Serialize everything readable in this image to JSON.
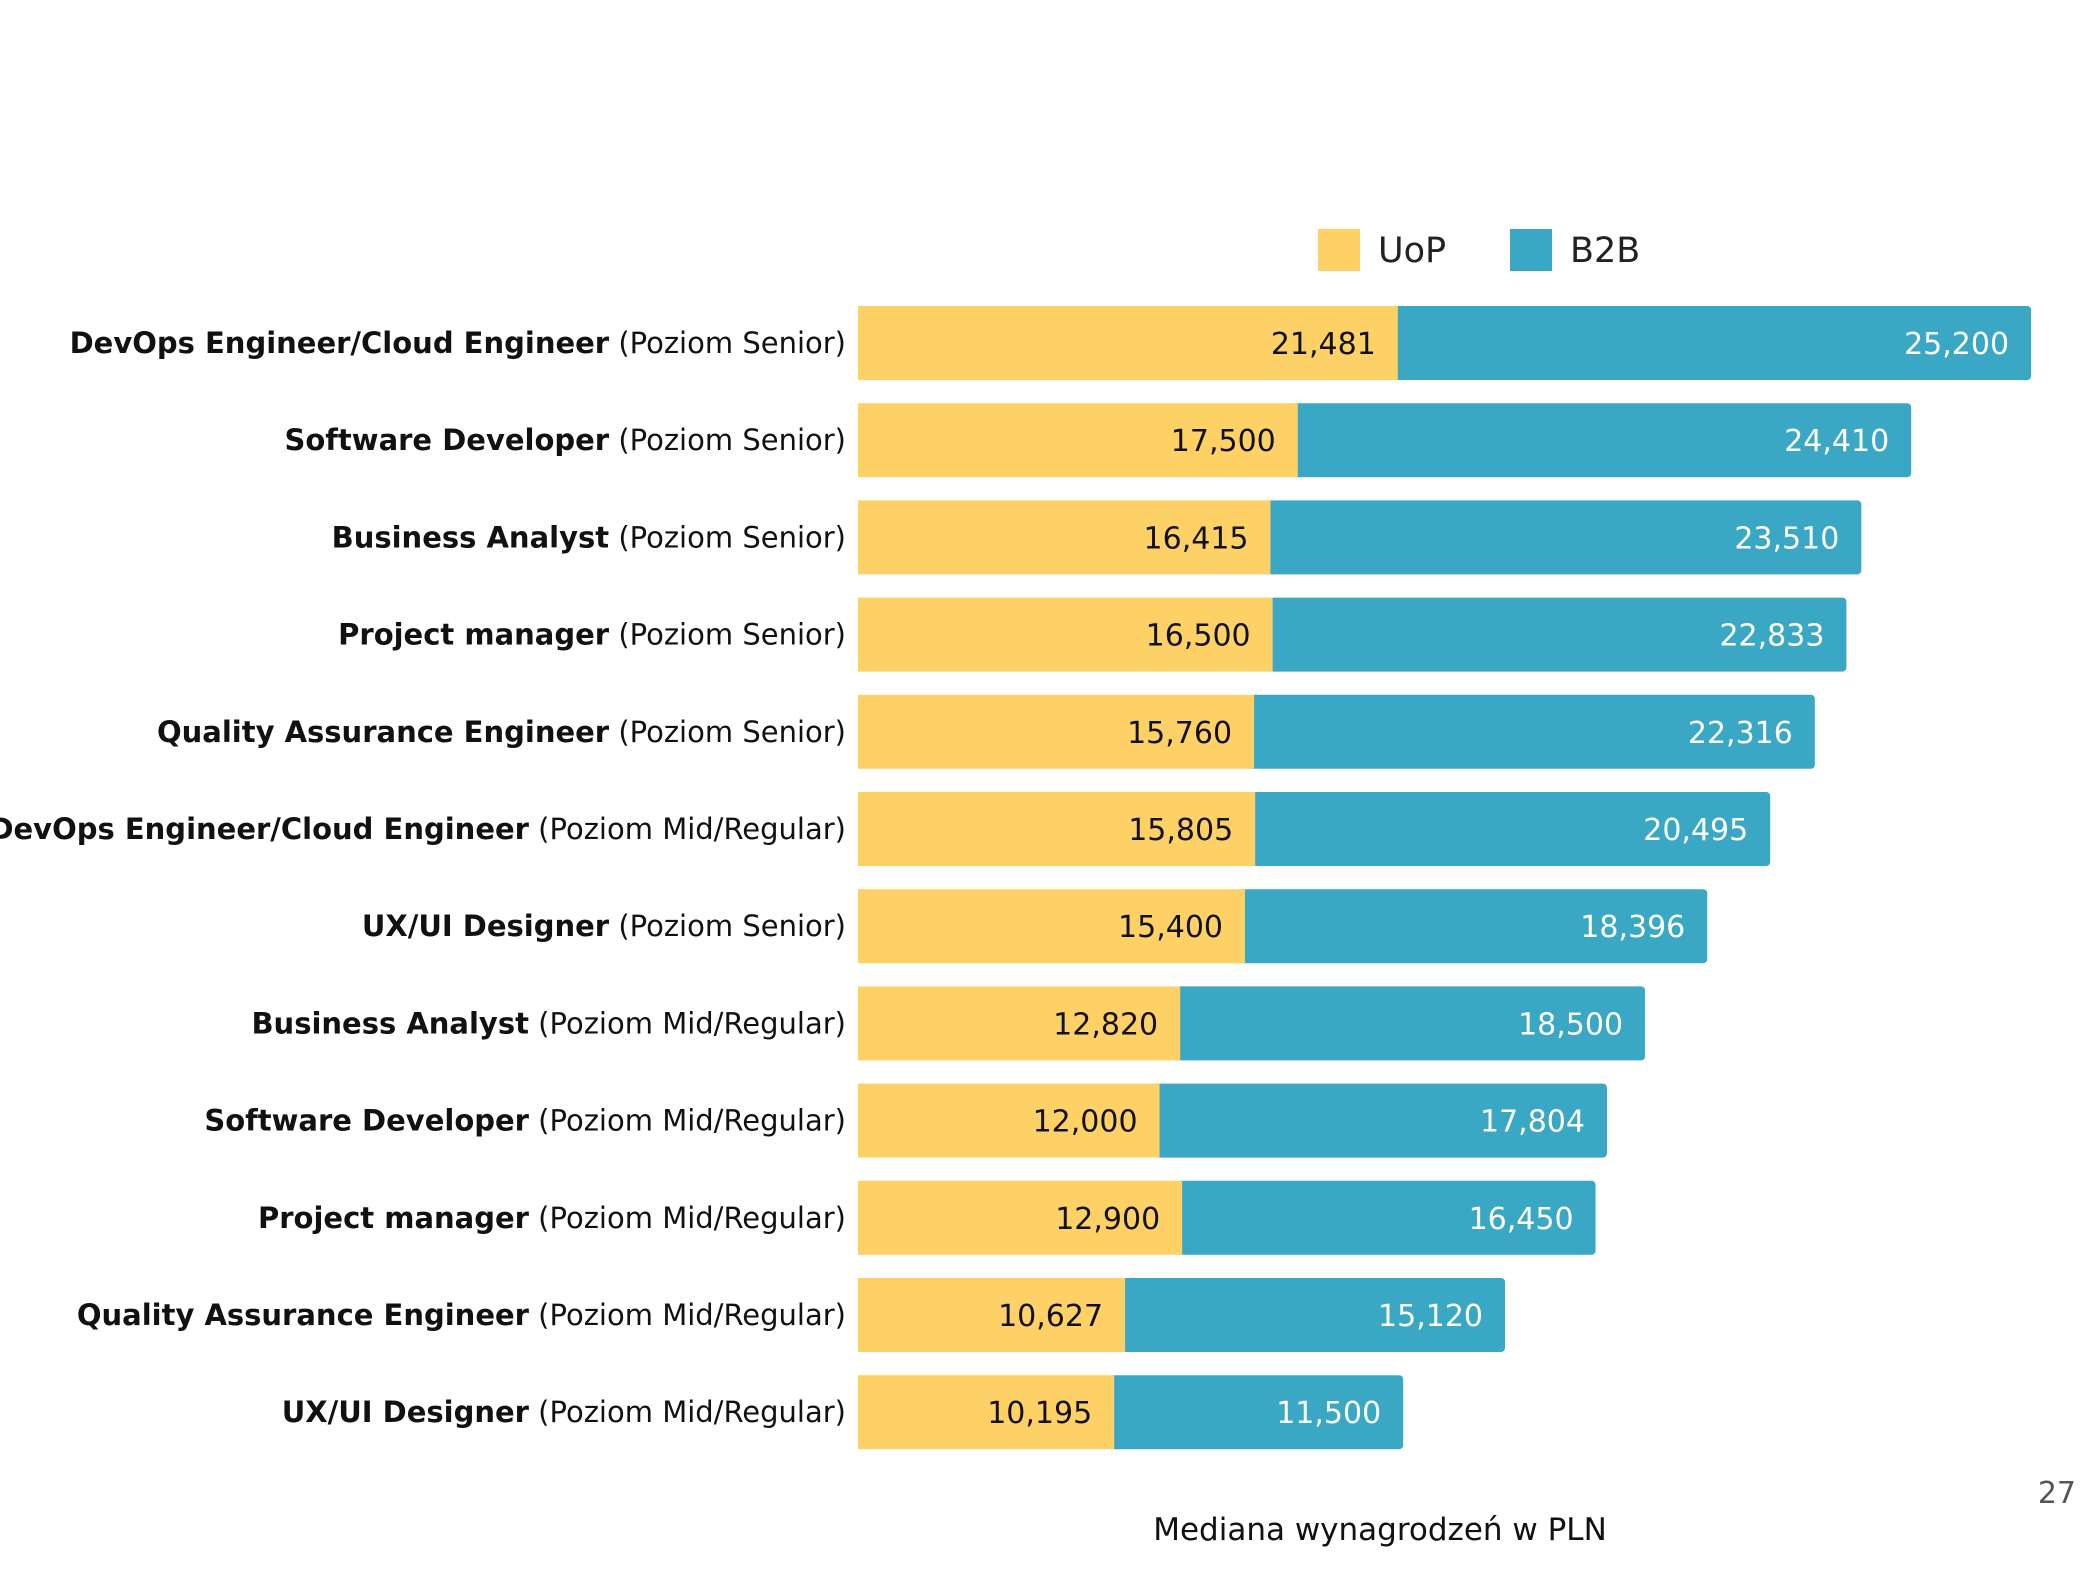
{
  "page": {
    "number": "27"
  },
  "colors": {
    "uop": "#FDD166",
    "b2b": "#3AA8C5"
  },
  "chart_data": {
    "type": "bar",
    "orientation": "horizontal",
    "stacked": true,
    "categories": [
      {
        "bold": "DevOps Engineer/Cloud Engineer",
        "level": "(Poziom Senior)"
      },
      {
        "bold": "Software Developer",
        "level": "(Poziom Senior)"
      },
      {
        "bold": "Business Analyst",
        "level": "(Poziom Senior)"
      },
      {
        "bold": "Project manager",
        "level": "(Poziom Senior)"
      },
      {
        "bold": "Quality Assurance Engineer",
        "level": "(Poziom Senior)"
      },
      {
        "bold": "DevOps Engineer/Cloud Engineer",
        "level": "(Poziom Mid/Regular)"
      },
      {
        "bold": "UX/UI Designer",
        "level": "(Poziom Senior)"
      },
      {
        "bold": "Business Analyst",
        "level": "(Poziom Mid/Regular)"
      },
      {
        "bold": "Software Developer",
        "level": "(Poziom Mid/Regular)"
      },
      {
        "bold": "Project manager",
        "level": "(Poziom Mid/Regular)"
      },
      {
        "bold": "Quality Assurance Engineer",
        "level": "(Poziom Mid/Regular)"
      },
      {
        "bold": "UX/UI Designer",
        "level": "(Poziom Mid/Regular)"
      }
    ],
    "series": [
      {
        "name": "UoP",
        "values": [
          21481,
          17500,
          16415,
          16500,
          15760,
          15805,
          15400,
          12820,
          12000,
          12900,
          10627,
          10195
        ]
      },
      {
        "name": "B2B",
        "values": [
          25200,
          24410,
          23510,
          22833,
          22316,
          20495,
          18396,
          18500,
          17804,
          16450,
          15120,
          11500
        ]
      }
    ],
    "value_labels": {
      "UoP": [
        "21,481",
        "17,500",
        "16,415",
        "16,500",
        "15,760",
        "15,805",
        "15,400",
        "12,820",
        "12,000",
        "12,900",
        "10,627",
        "10,195"
      ],
      "B2B": [
        "25,200",
        "24,410",
        "23,510",
        "22,833",
        "22,316",
        "20,495",
        "18,396",
        "18,500",
        "17,804",
        "16,450",
        "15,120",
        "11,500"
      ]
    },
    "legend": [
      "UoP",
      "B2B"
    ],
    "legend_position": "top",
    "xlabel": "Mediana wynagrodzeń w PLN",
    "ylabel": "",
    "grid": false
  }
}
